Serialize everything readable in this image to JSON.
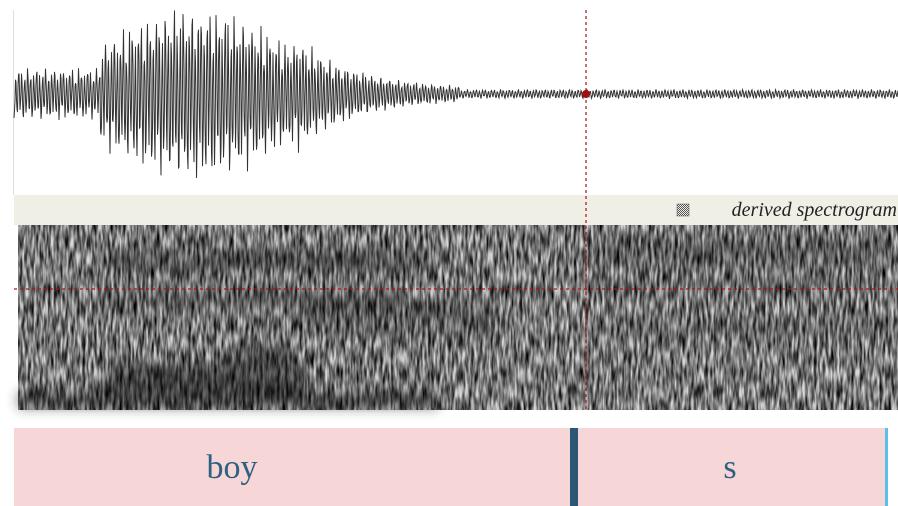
{
  "spectrogram_label": "derived spectrogram",
  "textgrid": {
    "intervals": [
      "boy",
      "s"
    ]
  }
}
